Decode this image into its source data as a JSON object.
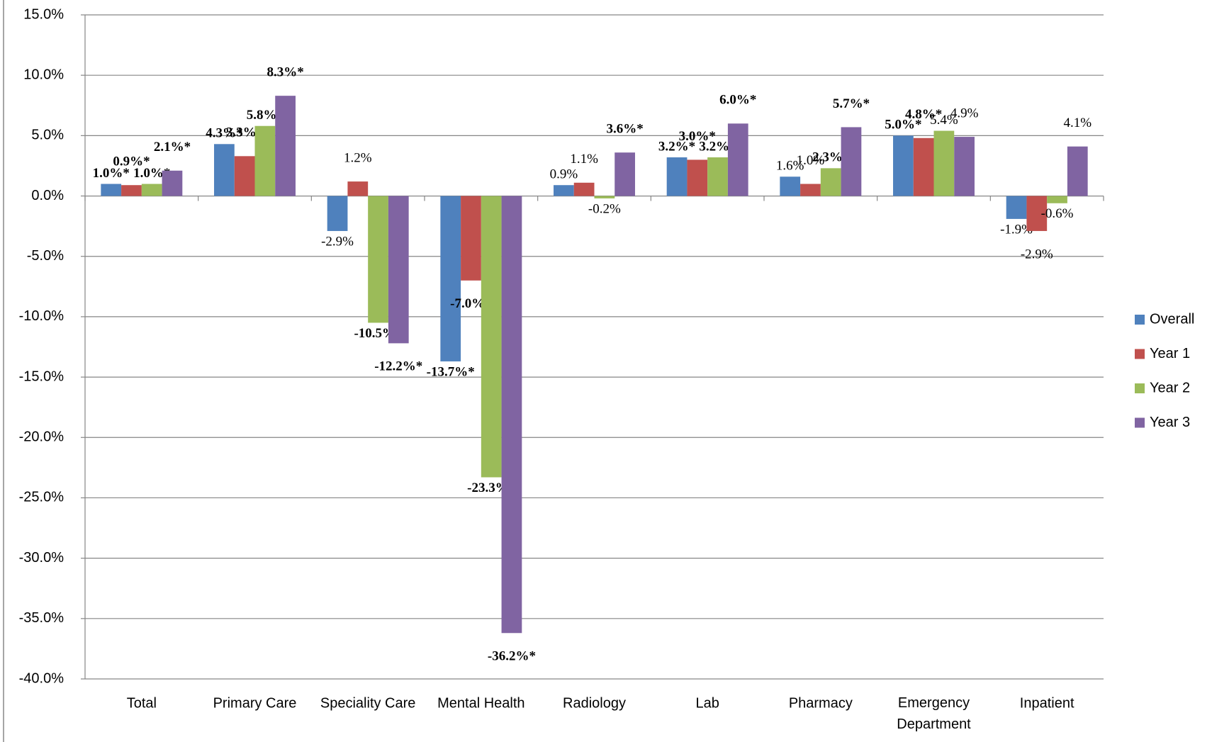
{
  "chart_data": {
    "type": "bar",
    "categories": [
      "Total",
      "Primary Care",
      "Speciality Care",
      "Mental Health",
      "Radiology",
      "Lab",
      "Pharmacy",
      "Emergency Department",
      "Inpatient"
    ],
    "series": [
      {
        "name": "Overall",
        "color": "#4f81bd",
        "values": [
          1.0,
          4.3,
          -2.9,
          -13.7,
          0.9,
          3.2,
          1.6,
          5.0,
          -1.9
        ],
        "value_labels": [
          "1.0%*",
          "4.3%*",
          "-2.9%",
          "-13.7%*",
          "0.9%",
          "3.2%*",
          "1.6%",
          "5.0%*",
          "-1.9%"
        ]
      },
      {
        "name": "Year 1",
        "color": "#c0504d",
        "values": [
          0.9,
          3.3,
          1.2,
          -7.0,
          1.1,
          3.0,
          1.0,
          4.8,
          -2.9
        ],
        "value_labels": [
          "0.9%*",
          "3.3%*",
          "1.2%",
          "-7.0%*",
          "1.1%",
          "3.0%*",
          "1.0%",
          "4.8%*",
          "-2.9%"
        ]
      },
      {
        "name": "Year 2",
        "color": "#9bbb59",
        "values": [
          1.0,
          5.8,
          -10.5,
          -23.3,
          -0.2,
          3.2,
          2.3,
          5.4,
          -0.6
        ],
        "value_labels": [
          "1.0%*",
          "5.8%*",
          "-10.5%*",
          "-23.3%*",
          "-0.2%",
          "3.2%*",
          "2.3%*",
          "5.4%",
          "-0.6%"
        ]
      },
      {
        "name": "Year 3",
        "color": "#8064a2",
        "values": [
          2.1,
          8.3,
          -12.2,
          -36.2,
          3.6,
          6.0,
          5.7,
          4.9,
          4.1
        ],
        "value_labels": [
          "2.1%*",
          "8.3%*",
          "-12.2%*",
          "-36.2%*",
          "3.6%*",
          "6.0%*",
          "5.7%*",
          "4.9%",
          "4.1%"
        ]
      }
    ],
    "ylim": [
      -40,
      15
    ],
    "yticks": [
      {
        "value": -40,
        "label": "-40.0%"
      },
      {
        "value": -35,
        "label": "-35.0%"
      },
      {
        "value": -30,
        "label": "-30.0%"
      },
      {
        "value": -25,
        "label": "-25.0%"
      },
      {
        "value": -20,
        "label": "-20.0%"
      },
      {
        "value": -15,
        "label": "-15.0%"
      },
      {
        "value": -10,
        "label": "-10.0%"
      },
      {
        "value": -5,
        "label": "-5.0%"
      },
      {
        "value": 0,
        "label": "0.0%"
      },
      {
        "value": 5,
        "label": "5.0%"
      },
      {
        "value": 10,
        "label": "10.0%"
      },
      {
        "value": 15,
        "label": "15.0%"
      }
    ],
    "grid": true,
    "legend": "right"
  }
}
